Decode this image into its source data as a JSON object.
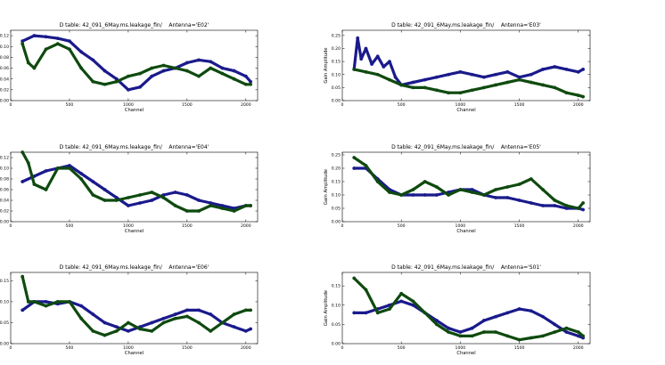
{
  "chart_data": [
    {
      "type": "line",
      "title": "D table: 42_091_6May.ms.leakage_fin/    Antenna='E02'",
      "xlabel": "Channel",
      "ylabel": "",
      "xlim": [
        0,
        2100
      ],
      "ylim": [
        0,
        0.13
      ],
      "xticks": [
        0,
        500,
        1000,
        1500,
        2000
      ],
      "yticks": [
        0.0,
        0.02,
        0.04,
        0.06,
        0.08,
        0.1,
        0.12
      ],
      "yfmt": 2,
      "series": [
        {
          "color": "#1a1a8c",
          "x": [
            100,
            200,
            300,
            400,
            500,
            600,
            700,
            800,
            900,
            1000,
            1100,
            1200,
            1300,
            1400,
            1500,
            1600,
            1700,
            1800,
            1900,
            2000,
            2040
          ],
          "y": [
            0.11,
            0.12,
            0.118,
            0.115,
            0.11,
            0.09,
            0.075,
            0.055,
            0.04,
            0.02,
            0.025,
            0.045,
            0.055,
            0.06,
            0.07,
            0.075,
            0.072,
            0.06,
            0.055,
            0.045,
            0.035
          ]
        },
        {
          "color": "#0f4a0f",
          "x": [
            100,
            150,
            200,
            300,
            400,
            500,
            600,
            700,
            800,
            900,
            1000,
            1100,
            1200,
            1300,
            1400,
            1500,
            1600,
            1700,
            1800,
            1900,
            2000,
            2040
          ],
          "y": [
            0.105,
            0.07,
            0.06,
            0.095,
            0.105,
            0.095,
            0.06,
            0.035,
            0.03,
            0.035,
            0.045,
            0.05,
            0.06,
            0.065,
            0.06,
            0.055,
            0.045,
            0.06,
            0.05,
            0.04,
            0.03,
            0.03
          ]
        }
      ]
    },
    {
      "type": "line",
      "title": "D table: 42_091_6May.ms.leakage_fin/    Antenna='E03'",
      "xlabel": "Channel",
      "ylabel": "Gain Amplitude",
      "xlim": [
        0,
        2100
      ],
      "ylim": [
        0,
        0.27
      ],
      "xticks": [
        0,
        500,
        1000,
        1500,
        2000
      ],
      "yticks": [
        0.0,
        0.05,
        0.1,
        0.15,
        0.2,
        0.25
      ],
      "yfmt": 2,
      "series": [
        {
          "color": "#1a1a8c",
          "x": [
            100,
            130,
            160,
            200,
            250,
            300,
            350,
            400,
            450,
            500,
            600,
            700,
            800,
            900,
            1000,
            1100,
            1200,
            1300,
            1400,
            1500,
            1600,
            1700,
            1800,
            1900,
            2000,
            2040
          ],
          "y": [
            0.12,
            0.24,
            0.16,
            0.2,
            0.14,
            0.17,
            0.13,
            0.15,
            0.09,
            0.06,
            0.07,
            0.08,
            0.09,
            0.1,
            0.11,
            0.1,
            0.09,
            0.1,
            0.11,
            0.09,
            0.1,
            0.12,
            0.13,
            0.12,
            0.11,
            0.12
          ]
        },
        {
          "color": "#0f4a0f",
          "x": [
            100,
            200,
            300,
            400,
            500,
            600,
            700,
            800,
            900,
            1000,
            1100,
            1200,
            1300,
            1400,
            1500,
            1600,
            1700,
            1800,
            1900,
            2000,
            2040
          ],
          "y": [
            0.12,
            0.11,
            0.1,
            0.08,
            0.06,
            0.05,
            0.05,
            0.04,
            0.03,
            0.03,
            0.04,
            0.05,
            0.06,
            0.07,
            0.08,
            0.07,
            0.06,
            0.05,
            0.03,
            0.02,
            0.015
          ]
        }
      ]
    },
    {
      "type": "line",
      "title": "D table: 42_091_6May.ms.leakage_fin/    Antenna='E04'",
      "xlabel": "Channel",
      "ylabel": "",
      "xlim": [
        0,
        2100
      ],
      "ylim": [
        0,
        0.13
      ],
      "xticks": [
        0,
        500,
        1000,
        1500,
        2000
      ],
      "yticks": [
        0.0,
        0.02,
        0.04,
        0.06,
        0.08,
        0.1,
        0.12
      ],
      "yfmt": 2,
      "series": [
        {
          "color": "#1a1a8c",
          "x": [
            100,
            200,
            300,
            400,
            500,
            600,
            700,
            800,
            900,
            1000,
            1100,
            1200,
            1300,
            1400,
            1500,
            1600,
            1700,
            1800,
            1900,
            2000,
            2040
          ],
          "y": [
            0.075,
            0.085,
            0.095,
            0.1,
            0.105,
            0.09,
            0.075,
            0.06,
            0.045,
            0.03,
            0.035,
            0.04,
            0.05,
            0.055,
            0.05,
            0.04,
            0.035,
            0.03,
            0.025,
            0.03,
            0.03
          ]
        },
        {
          "color": "#0f4a0f",
          "x": [
            100,
            150,
            200,
            300,
            400,
            500,
            600,
            700,
            800,
            900,
            1000,
            1100,
            1200,
            1300,
            1400,
            1500,
            1600,
            1700,
            1800,
            1900,
            2000,
            2040
          ],
          "y": [
            0.13,
            0.11,
            0.07,
            0.06,
            0.1,
            0.1,
            0.08,
            0.05,
            0.04,
            0.04,
            0.045,
            0.05,
            0.055,
            0.045,
            0.03,
            0.02,
            0.02,
            0.03,
            0.025,
            0.02,
            0.03,
            0.03
          ]
        }
      ]
    },
    {
      "type": "line",
      "title": "D table: 42_091_6May.ms.leakage_fin/    Antenna='E05'",
      "xlabel": "Channel",
      "ylabel": "Gain Amplitude",
      "xlim": [
        0,
        2100
      ],
      "ylim": [
        0,
        0.26
      ],
      "xticks": [
        0,
        500,
        1000,
        1500,
        2000
      ],
      "yticks": [
        0.0,
        0.05,
        0.1,
        0.15,
        0.2,
        0.25
      ],
      "yfmt": 2,
      "series": [
        {
          "color": "#1a1a8c",
          "x": [
            100,
            200,
            300,
            400,
            500,
            600,
            700,
            800,
            900,
            1000,
            1100,
            1200,
            1300,
            1400,
            1500,
            1600,
            1700,
            1800,
            1900,
            2000,
            2040
          ],
          "y": [
            0.2,
            0.2,
            0.16,
            0.12,
            0.1,
            0.1,
            0.1,
            0.1,
            0.11,
            0.12,
            0.12,
            0.1,
            0.09,
            0.09,
            0.08,
            0.07,
            0.06,
            0.06,
            0.05,
            0.05,
            0.045
          ]
        },
        {
          "color": "#0f4a0f",
          "x": [
            100,
            200,
            300,
            400,
            500,
            600,
            700,
            800,
            900,
            1000,
            1100,
            1200,
            1300,
            1400,
            1500,
            1600,
            1700,
            1800,
            1900,
            2000,
            2040
          ],
          "y": [
            0.24,
            0.21,
            0.15,
            0.11,
            0.1,
            0.12,
            0.15,
            0.13,
            0.1,
            0.12,
            0.11,
            0.1,
            0.12,
            0.13,
            0.14,
            0.16,
            0.12,
            0.08,
            0.06,
            0.05,
            0.07
          ]
        }
      ]
    },
    {
      "type": "line",
      "title": "D table: 42_091_6May.ms.leakage_fin/    Antenna='E06'",
      "xlabel": "Channel",
      "ylabel": "",
      "xlim": [
        0,
        2100
      ],
      "ylim": [
        0,
        0.17
      ],
      "xticks": [
        0,
        500,
        1000,
        1500,
        2000
      ],
      "yticks": [
        0.0,
        0.05,
        0.1,
        0.15
      ],
      "yfmt": 2,
      "series": [
        {
          "color": "#1a1a8c",
          "x": [
            100,
            200,
            300,
            400,
            500,
            600,
            700,
            800,
            900,
            1000,
            1100,
            1200,
            1300,
            1400,
            1500,
            1600,
            1700,
            1800,
            1900,
            2000,
            2040
          ],
          "y": [
            0.08,
            0.1,
            0.1,
            0.095,
            0.1,
            0.09,
            0.07,
            0.05,
            0.04,
            0.03,
            0.04,
            0.05,
            0.06,
            0.07,
            0.08,
            0.08,
            0.07,
            0.05,
            0.04,
            0.03,
            0.035
          ]
        },
        {
          "color": "#0f4a0f",
          "x": [
            100,
            150,
            200,
            300,
            400,
            500,
            600,
            700,
            800,
            900,
            1000,
            1100,
            1200,
            1300,
            1400,
            1500,
            1600,
            1700,
            1800,
            1900,
            2000,
            2040
          ],
          "y": [
            0.16,
            0.1,
            0.1,
            0.09,
            0.1,
            0.1,
            0.06,
            0.03,
            0.02,
            0.03,
            0.05,
            0.035,
            0.03,
            0.05,
            0.06,
            0.065,
            0.05,
            0.03,
            0.05,
            0.07,
            0.08,
            0.08
          ]
        }
      ]
    },
    {
      "type": "line",
      "title": "D table: 42_091_6May.ms.leakage_fin/    Antenna='S01'",
      "xlabel": "Channel",
      "ylabel": "Gain Amplitude",
      "xlim": [
        0,
        2100
      ],
      "ylim": [
        0,
        0.185
      ],
      "xticks": [
        0,
        500,
        1000,
        1500,
        2000
      ],
      "yticks": [
        0.0,
        0.05,
        0.1,
        0.15
      ],
      "yfmt": 2,
      "series": [
        {
          "color": "#1a1a8c",
          "x": [
            100,
            200,
            300,
            400,
            500,
            600,
            700,
            800,
            900,
            1000,
            1100,
            1200,
            1300,
            1400,
            1500,
            1600,
            1700,
            1800,
            1900,
            2000,
            2040
          ],
          "y": [
            0.08,
            0.08,
            0.09,
            0.1,
            0.11,
            0.1,
            0.08,
            0.06,
            0.04,
            0.03,
            0.04,
            0.06,
            0.07,
            0.08,
            0.09,
            0.085,
            0.07,
            0.05,
            0.03,
            0.02,
            0.015
          ]
        },
        {
          "color": "#0f4a0f",
          "x": [
            100,
            200,
            300,
            400,
            500,
            600,
            700,
            800,
            900,
            1000,
            1100,
            1200,
            1300,
            1400,
            1500,
            1600,
            1700,
            1800,
            1900,
            2000,
            2040
          ],
          "y": [
            0.17,
            0.14,
            0.08,
            0.09,
            0.13,
            0.11,
            0.08,
            0.05,
            0.03,
            0.02,
            0.02,
            0.03,
            0.03,
            0.02,
            0.01,
            0.015,
            0.02,
            0.03,
            0.04,
            0.03,
            0.02
          ]
        }
      ]
    }
  ]
}
